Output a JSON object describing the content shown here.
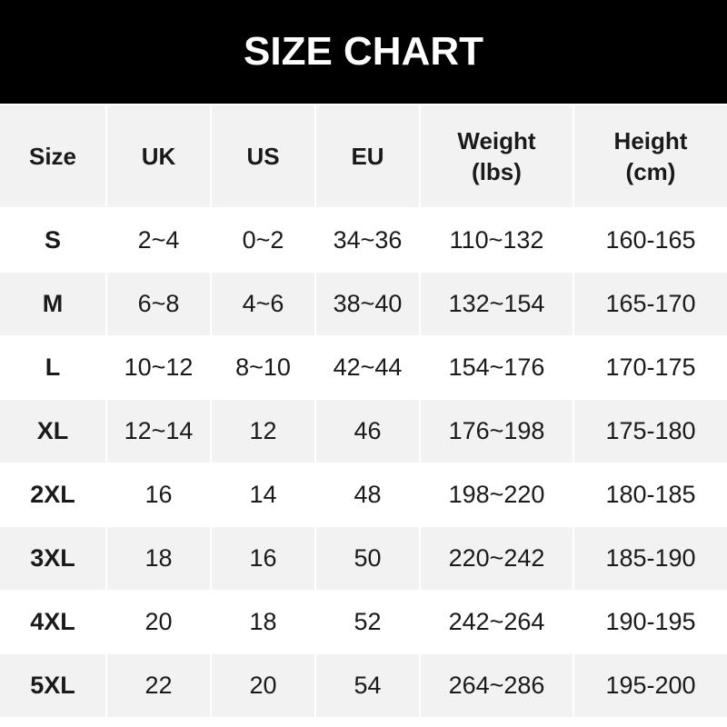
{
  "title": "SIZE CHART",
  "headers": [
    "Size",
    "UK",
    "US",
    "EU",
    "Weight\n(lbs)",
    "Height\n(cm)"
  ],
  "rows": [
    [
      "S",
      "2~4",
      "0~2",
      "34~36",
      "110~132",
      "160-165"
    ],
    [
      "M",
      "6~8",
      "4~6",
      "38~40",
      "132~154",
      "165-170"
    ],
    [
      "L",
      "10~12",
      "8~10",
      "42~44",
      "154~176",
      "170-175"
    ],
    [
      "XL",
      "12~14",
      "12",
      "46",
      "176~198",
      "175-180"
    ],
    [
      "2XL",
      "16",
      "14",
      "48",
      "198~220",
      "180-185"
    ],
    [
      "3XL",
      "18",
      "16",
      "50",
      "220~242",
      "185-190"
    ],
    [
      "4XL",
      "20",
      "18",
      "52",
      "242~264",
      "190-195"
    ],
    [
      "5XL",
      "22",
      "20",
      "54",
      "264~286",
      "195-200"
    ]
  ],
  "colors": {
    "banner": "#000000",
    "stripe": "#f2f2f2"
  }
}
